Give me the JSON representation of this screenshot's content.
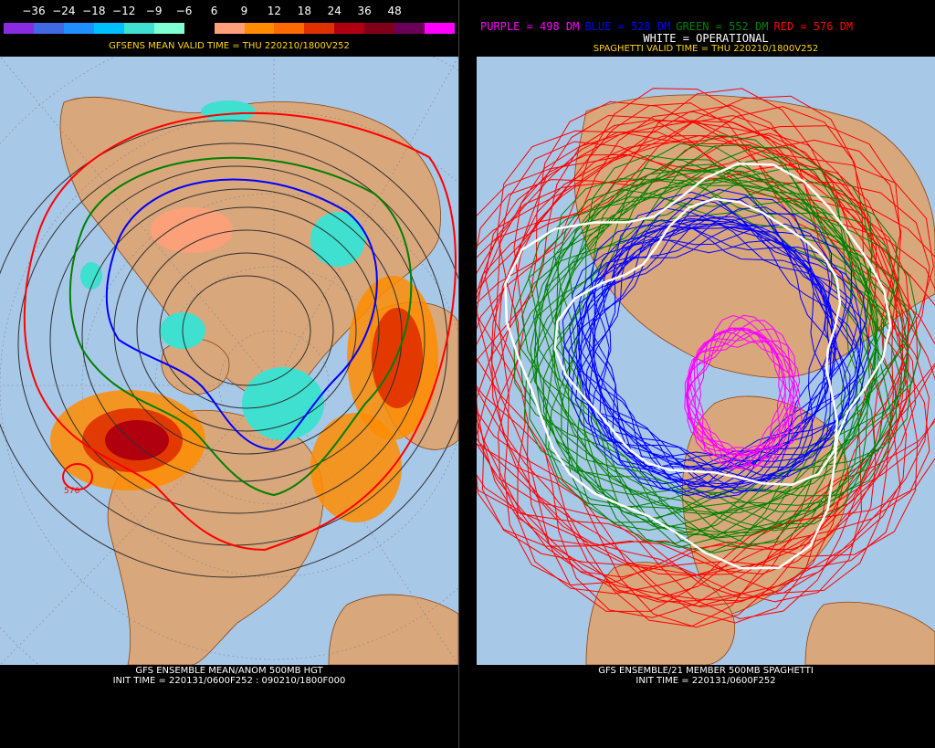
{
  "left_panel": {
    "colorbar": {
      "labels": [
        "−36",
        "−24",
        "−18",
        "−12",
        "−9",
        "−6",
        "6",
        "9",
        "12",
        "18",
        "24",
        "36",
        "48"
      ],
      "colors": [
        "#8a2be2",
        "#4169e1",
        "#1e90ff",
        "#00bfff",
        "#40e0d0",
        "#7fffd4",
        "#000000",
        "#ffa07a",
        "#ff8c00",
        "#ff6a00",
        "#e03000",
        "#b00010",
        "#80001a",
        "#6a005a",
        "#ff00ff"
      ]
    },
    "valid_title": "GFSENS MEAN VALID TIME = THU 220210/1800V252",
    "bottom_title": "GFS ENSEMBLE MEAN/ANOM 500MB HGT",
    "bottom_init": "INIT TIME = 220131/0600F252 : 090210/1800F000",
    "contour_label": "576"
  },
  "right_panel": {
    "legend": {
      "purple": "PURPLE = 498 DM",
      "blue": "BLUE = 528 DM",
      "green": "GREEN = 552 DM",
      "red": "RED = 576 DM",
      "white": "WHITE = OPERATIONAL",
      "colors": {
        "purple": "#ff00ff",
        "blue": "#0000ff",
        "green": "#008000",
        "red": "#ff0000",
        "white": "#ffffff"
      }
    },
    "valid_title": "SPAGHETTI VALID TIME = THU 220210/1800V252",
    "bottom_title": "GFS ENSEMBLE/21 MEMBER 500MB SPAGHETTI",
    "bottom_init": "INIT TIME = 220131/0600F252"
  },
  "colors": {
    "ocean": "#a8c8e8",
    "land": "#d9a77c",
    "border": "#8b4513"
  }
}
